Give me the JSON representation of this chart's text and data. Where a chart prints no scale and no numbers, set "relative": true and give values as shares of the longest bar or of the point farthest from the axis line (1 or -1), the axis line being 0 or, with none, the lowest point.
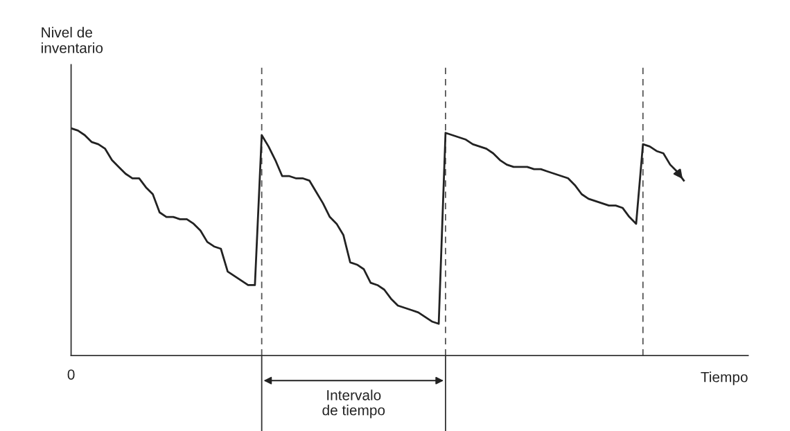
{
  "chart_data": {
    "type": "line",
    "relative": true,
    "xlabel": "Tiempo",
    "legend": false,
    "grid": "x",
    "marker": "none",
    "line_style": "solid",
    "categories": [
      null,
      null,
      null,
      null,
      null,
      null,
      null,
      null,
      null,
      null,
      null,
      null,
      null,
      null,
      null,
      null,
      null,
      null,
      null,
      null,
      null,
      null,
      null,
      null,
      null,
      null,
      null,
      null,
      null,
      null,
      null,
      null,
      null,
      null,
      null,
      null,
      null,
      null,
      null,
      null,
      null,
      null,
      null,
      null,
      null,
      null,
      null,
      null,
      null,
      null,
      null,
      null,
      null,
      null,
      null,
      null,
      null,
      null,
      null,
      null,
      null,
      null,
      null,
      null,
      null,
      null,
      null,
      null,
      null,
      null,
      null,
      null,
      null,
      null,
      null,
      null,
      null,
      null,
      null,
      null,
      null,
      null,
      null,
      null,
      null,
      null,
      null,
      null,
      null,
      null,
      null
    ],
    "series": [
      {
        "color": "#222222",
        "values": [
          1.0,
          0.99,
          0.97,
          0.94,
          0.93,
          0.91,
          0.86,
          0.83,
          0.8,
          0.78,
          0.78,
          0.74,
          0.71,
          0.63,
          0.61,
          0.61,
          0.6,
          0.6,
          0.58,
          0.55,
          0.5,
          0.48,
          0.47,
          0.37,
          0.35,
          0.33,
          0.31,
          0.31,
          0.97,
          0.92,
          0.86,
          0.79,
          0.79,
          0.78,
          0.78,
          0.77,
          0.72,
          0.67,
          0.61,
          0.58,
          0.53,
          0.41,
          0.4,
          0.38,
          0.32,
          0.31,
          0.29,
          0.25,
          0.22,
          0.21,
          0.2,
          0.19,
          0.17,
          0.15,
          0.14,
          0.98,
          0.97,
          0.96,
          0.95,
          0.93,
          0.92,
          0.91,
          0.89,
          0.86,
          0.84,
          0.83,
          0.83,
          0.83,
          0.82,
          0.82,
          0.81,
          0.8,
          0.79,
          0.78,
          0.75,
          0.71,
          0.69,
          0.68,
          0.67,
          0.66,
          0.66,
          0.65,
          0.61,
          0.58,
          0.93,
          0.92,
          0.9,
          0.89,
          0.84,
          0.81,
          0.77
        ]
      }
    ],
    "annotations": [
      "Nivel de\ninventario",
      "0",
      "Intervalo\nde tiempo"
    ]
  }
}
